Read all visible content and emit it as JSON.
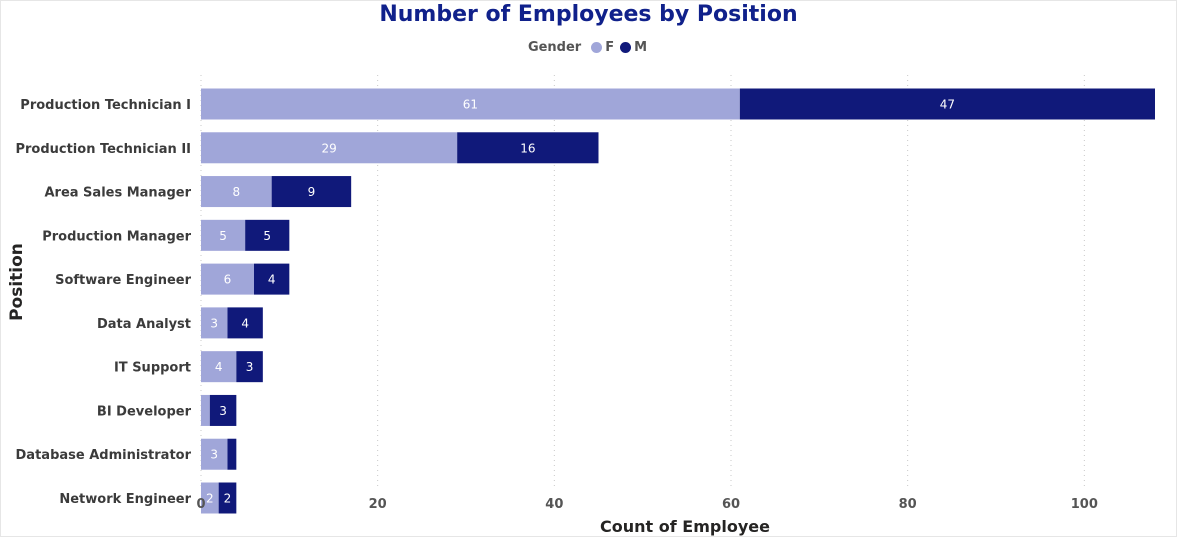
{
  "chart_data": {
    "type": "bar",
    "orientation": "horizontal",
    "stacked": true,
    "title": "Number of Employees by Position",
    "xlabel": "Count of Employee",
    "ylabel": "Position",
    "legend": {
      "title": "Gender",
      "placement": "top-center"
    },
    "categories": [
      "Production Technician I",
      "Production Technician II",
      "Area Sales Manager",
      "Production Manager",
      "Software Engineer",
      "Data Analyst",
      "IT Support",
      "BI Developer",
      "Database Administrator",
      "Network Engineer"
    ],
    "series": [
      {
        "name": "F",
        "color": "#a0a6d9",
        "values": [
          61,
          29,
          8,
          5,
          6,
          3,
          4,
          1,
          3,
          2
        ],
        "labels": [
          "61",
          "29",
          "8",
          "5",
          "6",
          "3",
          "4",
          "",
          "3",
          "2"
        ]
      },
      {
        "name": "M",
        "color": "#10197a",
        "values": [
          47,
          16,
          9,
          5,
          4,
          4,
          3,
          3,
          1,
          2
        ],
        "labels": [
          "47",
          "16",
          "9",
          "5",
          "4",
          "4",
          "3",
          "3",
          "",
          "2"
        ]
      }
    ],
    "xlim": [
      0,
      108
    ],
    "xticks": [
      0,
      20,
      40,
      60,
      80,
      100
    ],
    "grid": true
  }
}
